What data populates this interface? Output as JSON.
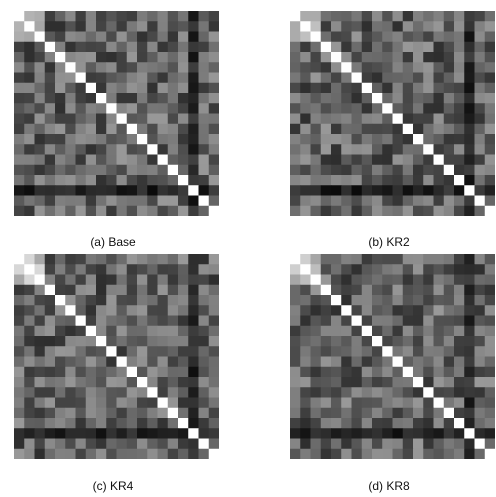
{
  "chart_data": [
    {
      "type": "heatmap",
      "caption": "(a) Base",
      "size": 20,
      "diagonal_value": 1.0,
      "color_scale": "grayscale",
      "grid": false
    },
    {
      "type": "heatmap",
      "caption": "(b) KR2",
      "size": 20,
      "diagonal_value": 1.0,
      "color_scale": "grayscale",
      "grid": false
    },
    {
      "type": "heatmap",
      "caption": "(c) KR4",
      "size": 20,
      "diagonal_value": 1.0,
      "color_scale": "grayscale",
      "grid": false
    },
    {
      "type": "heatmap",
      "caption": "(d) KR8",
      "size": 20,
      "diagonal_value": 1.0,
      "color_scale": "grayscale",
      "grid": false
    }
  ]
}
